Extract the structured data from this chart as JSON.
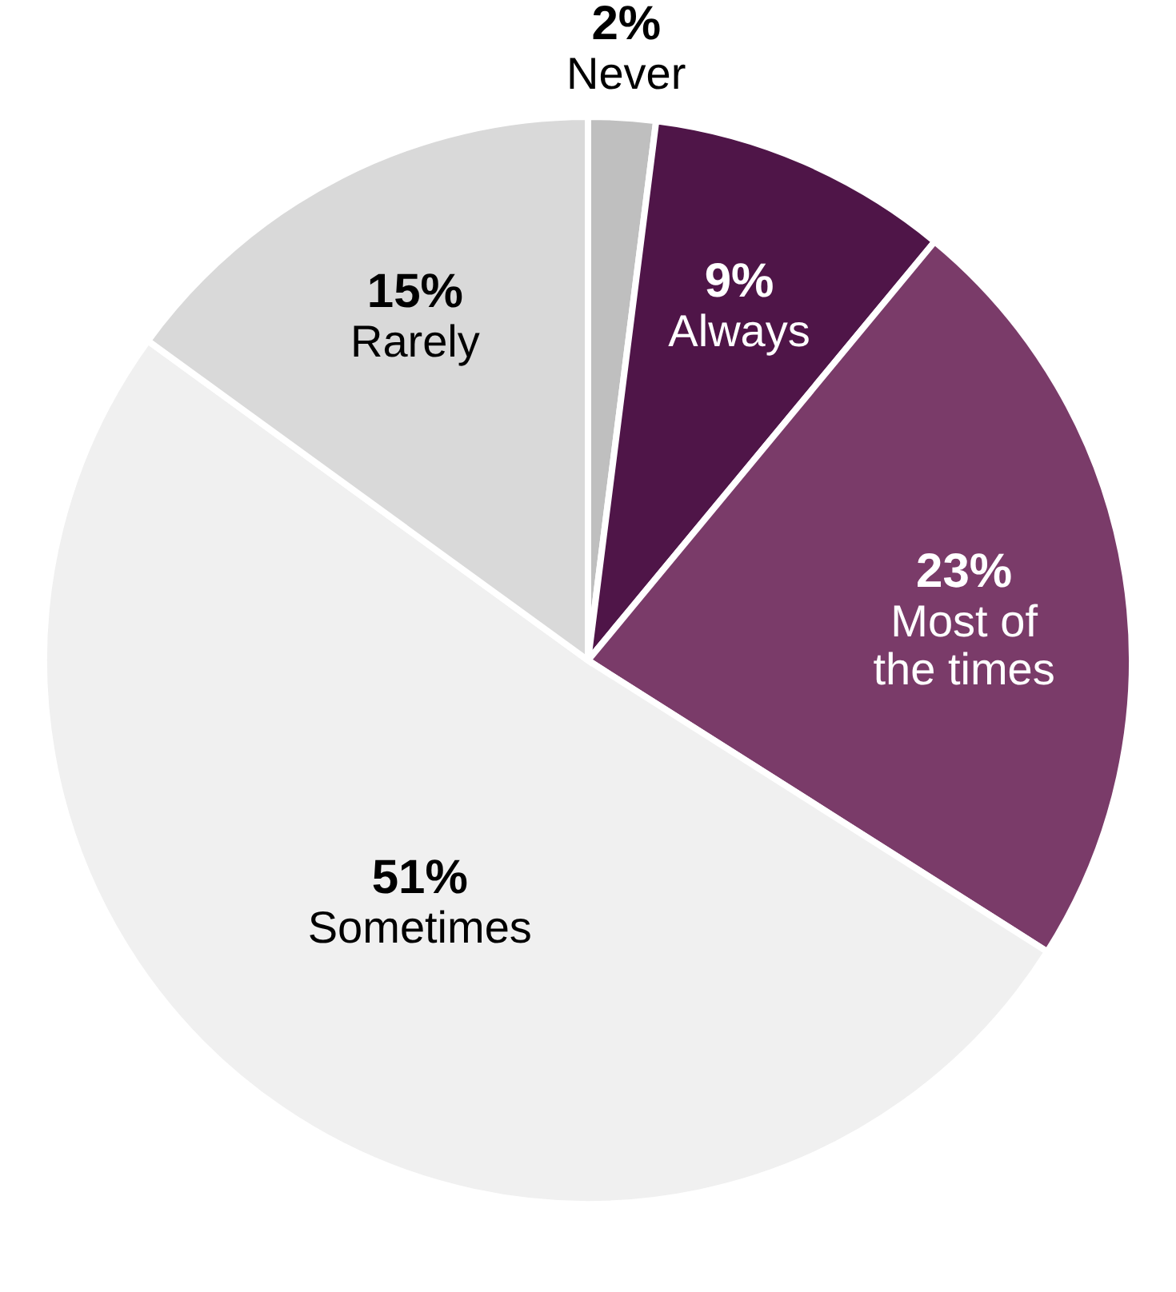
{
  "chart_data": {
    "type": "pie",
    "categories": [
      "Never",
      "Always",
      "Most of the times",
      "Sometimes",
      "Rarely"
    ],
    "values": [
      2,
      9,
      23,
      51,
      15
    ],
    "value_labels": [
      "2%",
      "9%",
      "23%",
      "51%",
      "15%"
    ],
    "colors": [
      "#bfbfbf",
      "#4f1548",
      "#7a3b69",
      "#f0f0f0",
      "#d9d9d9"
    ]
  }
}
